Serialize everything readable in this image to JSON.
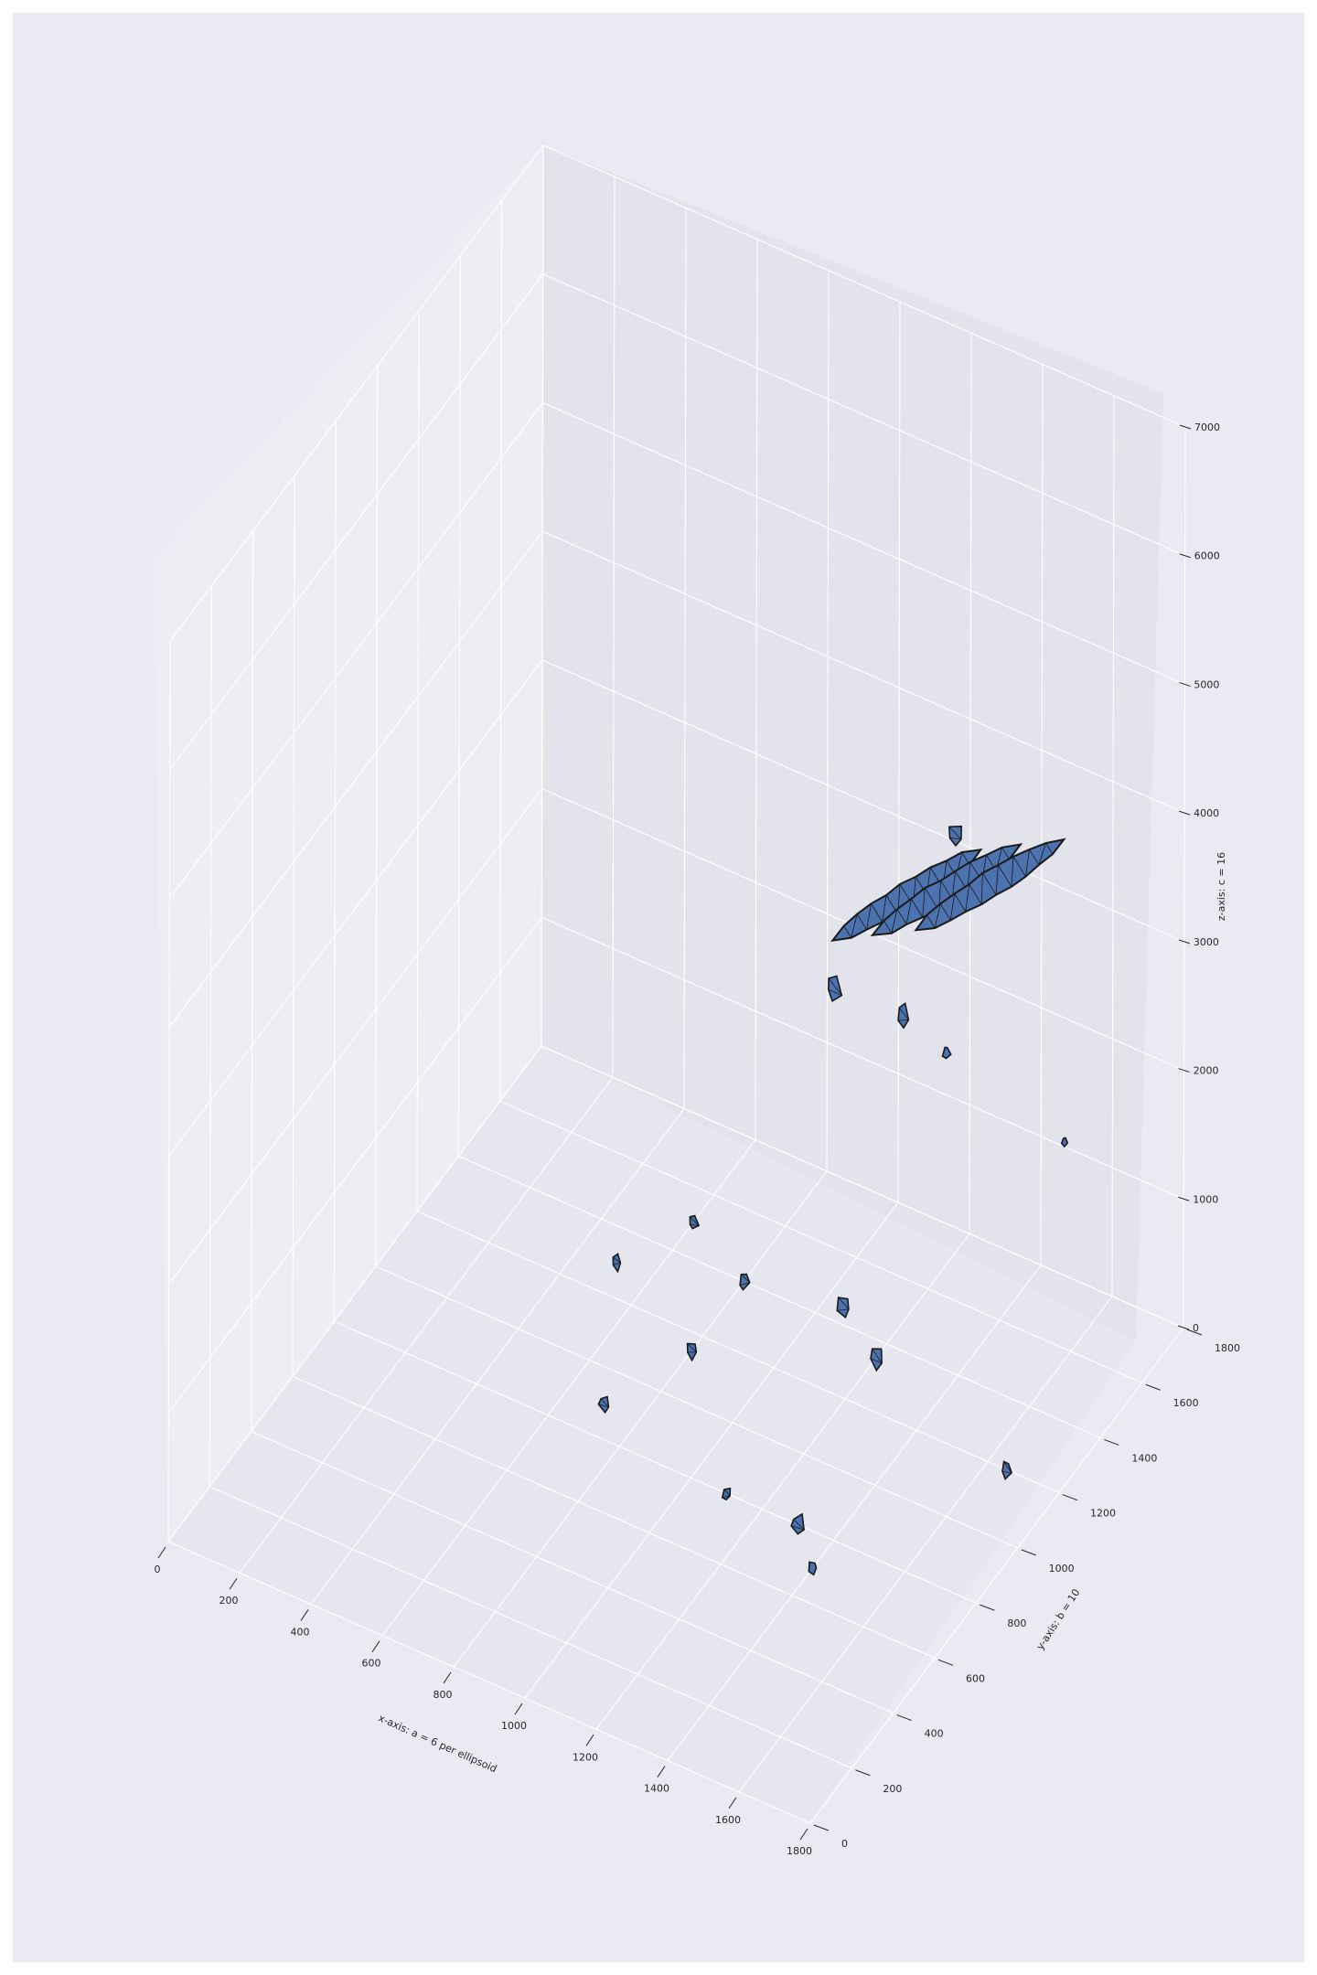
{
  "chart_data": {
    "type": "scatter",
    "title": "",
    "xlabel": "x-axis: a = 6 per ellipsoid",
    "ylabel": "y-axis: b = 10",
    "zlabel": "z-axis: c = 16",
    "xlim": [
      0,
      1800
    ],
    "ylim": [
      0,
      1800
    ],
    "zlim": [
      0,
      7000
    ],
    "x_ticks": [
      "0",
      "200",
      "400",
      "600",
      "800",
      "1000",
      "1200",
      "1400",
      "1600",
      "1800"
    ],
    "y_ticks": [
      "0",
      "200",
      "400",
      "600",
      "800",
      "1000",
      "1200",
      "1400",
      "1600",
      "1800"
    ],
    "z_ticks": [
      "0",
      "1000",
      "2000",
      "3000",
      "4000",
      "5000",
      "6000",
      "7000"
    ],
    "grid": true,
    "view": "3d-perspective",
    "surface_color": "#4c72b0",
    "edge_color": "#1a1a1a",
    "background_color": "#eaeaf2",
    "grid_color": "#ffffff",
    "series": [
      {
        "marker": "triangulated-surface",
        "points": [
          {
            "x": 1080,
            "y": 1700,
            "z": 2700,
            "size": 1.0
          },
          {
            "x": 1180,
            "y": 1720,
            "z": 2820,
            "size": 1.0
          },
          {
            "x": 1290,
            "y": 1740,
            "z": 2950,
            "size": 1.0
          },
          {
            "x": 1180,
            "y": 1760,
            "z": 3150,
            "size": 0.5
          },
          {
            "x": 980,
            "y": 1520,
            "z": 2250,
            "size": 0.6
          },
          {
            "x": 1150,
            "y": 1560,
            "z": 2150,
            "size": 0.4
          },
          {
            "x": 1250,
            "y": 1600,
            "z": 1900,
            "size": 0.2
          },
          {
            "x": 1640,
            "y": 1500,
            "z": 1900,
            "size": 0.1
          },
          {
            "x": 600,
            "y": 1500,
            "z": 0,
            "size": 0.3
          },
          {
            "x": 800,
            "y": 1400,
            "z": 0,
            "size": 0.5
          },
          {
            "x": 1050,
            "y": 1450,
            "z": 0,
            "size": 0.4
          },
          {
            "x": 500,
            "y": 1300,
            "z": 0,
            "size": 0.3
          },
          {
            "x": 800,
            "y": 1150,
            "z": 0,
            "size": 0.3
          },
          {
            "x": 1200,
            "y": 1350,
            "z": 0,
            "size": 0.4
          },
          {
            "x": 1650,
            "y": 1200,
            "z": 0,
            "size": 0.3
          },
          {
            "x": 1300,
            "y": 800,
            "z": 0,
            "size": 0.4
          },
          {
            "x": 1100,
            "y": 800,
            "z": 0,
            "size": 0.3
          },
          {
            "x": 1400,
            "y": 700,
            "z": 0,
            "size": 0.2
          },
          {
            "x": 700,
            "y": 900,
            "z": 0,
            "size": 0.4
          }
        ]
      }
    ]
  }
}
